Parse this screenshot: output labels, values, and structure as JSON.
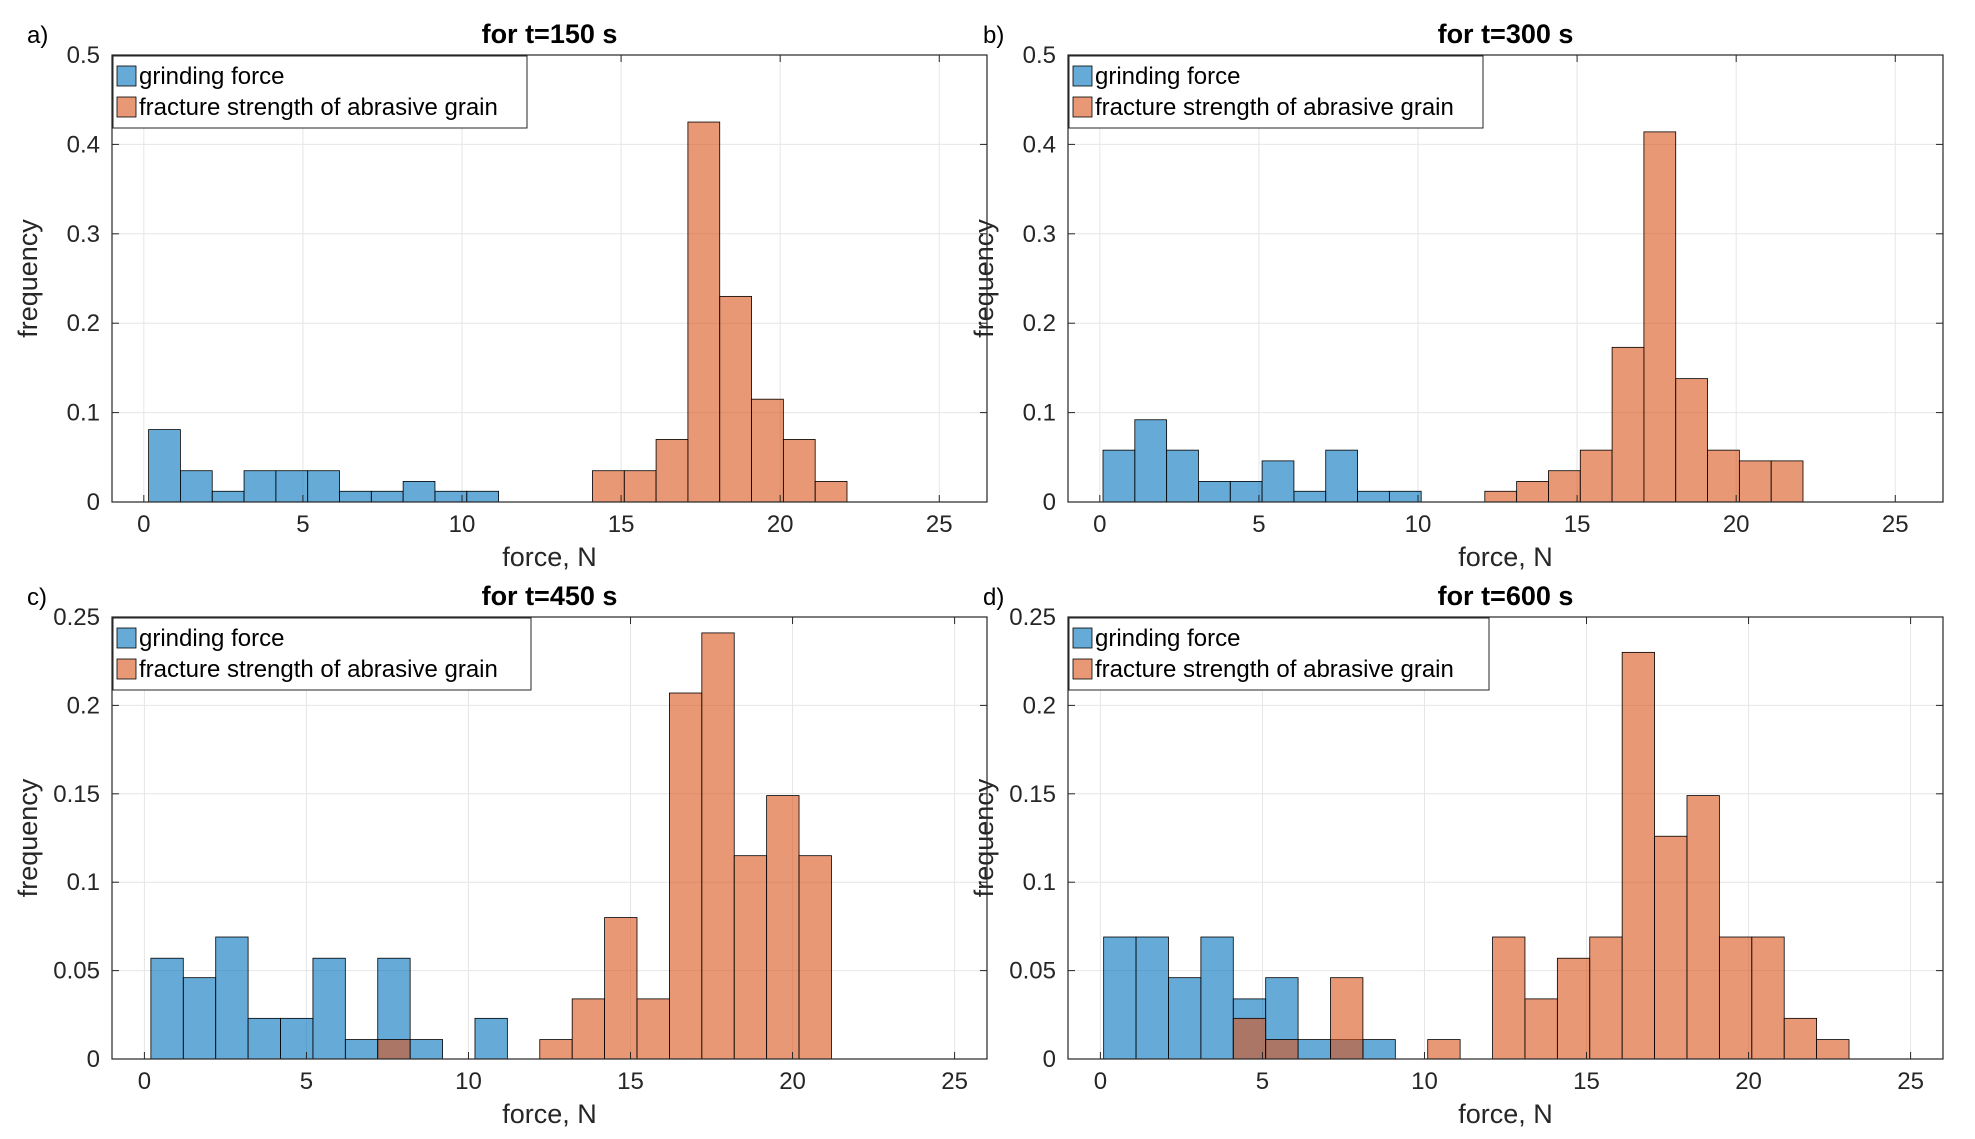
{
  "colors": {
    "grinding": "#0072bd",
    "fracture": "#d95319",
    "axis": "#262626",
    "grid": "#e6e6e6"
  },
  "chart_data": [
    {
      "type": "bar",
      "panel_label": "a)",
      "title": "for t=150 s",
      "xlabel": "force, N",
      "ylabel": "frequency",
      "xlim": [
        -1,
        26.5
      ],
      "ylim": [
        0,
        0.5
      ],
      "xticks": [
        0,
        5,
        10,
        15,
        20,
        25
      ],
      "yticks": [
        0,
        0.1,
        0.2,
        0.3,
        0.4,
        0.5
      ],
      "ytick_labels": [
        "0",
        "0.1",
        "0.2",
        "0.3",
        "0.4",
        "0.5"
      ],
      "grid": true,
      "legend": "top-left",
      "series": [
        {
          "name": "grinding force",
          "bins": [
            {
              "x0": 0.15,
              "x1": 1.15,
              "y": 0.081
            },
            {
              "x0": 1.15,
              "x1": 2.15,
              "y": 0.035
            },
            {
              "x0": 2.15,
              "x1": 3.15,
              "y": 0.012
            },
            {
              "x0": 3.15,
              "x1": 4.15,
              "y": 0.035
            },
            {
              "x0": 4.15,
              "x1": 5.15,
              "y": 0.035
            },
            {
              "x0": 5.15,
              "x1": 6.15,
              "y": 0.035
            },
            {
              "x0": 6.15,
              "x1": 7.15,
              "y": 0.012
            },
            {
              "x0": 7.15,
              "x1": 8.15,
              "y": 0.012
            },
            {
              "x0": 8.15,
              "x1": 9.15,
              "y": 0.023
            },
            {
              "x0": 9.15,
              "x1": 10.15,
              "y": 0.012
            },
            {
              "x0": 10.15,
              "x1": 11.15,
              "y": 0.012
            }
          ]
        },
        {
          "name": "fracture strength of abrasive grain",
          "bins": [
            {
              "x0": 14.1,
              "x1": 15.1,
              "y": 0.035
            },
            {
              "x0": 15.1,
              "x1": 16.1,
              "y": 0.035
            },
            {
              "x0": 16.1,
              "x1": 17.1,
              "y": 0.07
            },
            {
              "x0": 17.1,
              "x1": 18.1,
              "y": 0.425
            },
            {
              "x0": 18.1,
              "x1": 19.1,
              "y": 0.23
            },
            {
              "x0": 19.1,
              "x1": 20.1,
              "y": 0.115
            },
            {
              "x0": 20.1,
              "x1": 21.1,
              "y": 0.07
            },
            {
              "x0": 21.1,
              "x1": 22.1,
              "y": 0.023
            }
          ]
        }
      ]
    },
    {
      "type": "bar",
      "panel_label": "b)",
      "title": "for t=300 s",
      "xlabel": "force, N",
      "ylabel": "frequency",
      "xlim": [
        -1,
        26.5
      ],
      "ylim": [
        0,
        0.5
      ],
      "xticks": [
        0,
        5,
        10,
        15,
        20,
        25
      ],
      "yticks": [
        0,
        0.1,
        0.2,
        0.3,
        0.4,
        0.5
      ],
      "ytick_labels": [
        "0",
        "0.1",
        "0.2",
        "0.3",
        "0.4",
        "0.5"
      ],
      "grid": true,
      "legend": "top-left",
      "series": [
        {
          "name": "grinding force",
          "bins": [
            {
              "x0": 0.1,
              "x1": 1.1,
              "y": 0.058
            },
            {
              "x0": 1.1,
              "x1": 2.1,
              "y": 0.092
            },
            {
              "x0": 2.1,
              "x1": 3.1,
              "y": 0.058
            },
            {
              "x0": 3.1,
              "x1": 4.1,
              "y": 0.023
            },
            {
              "x0": 4.1,
              "x1": 5.1,
              "y": 0.023
            },
            {
              "x0": 5.1,
              "x1": 6.1,
              "y": 0.046
            },
            {
              "x0": 6.1,
              "x1": 7.1,
              "y": 0.012
            },
            {
              "x0": 7.1,
              "x1": 8.1,
              "y": 0.058
            },
            {
              "x0": 8.1,
              "x1": 9.1,
              "y": 0.012
            },
            {
              "x0": 9.1,
              "x1": 10.1,
              "y": 0.012
            }
          ]
        },
        {
          "name": "fracture strength of abrasive grain",
          "bins": [
            {
              "x0": 12.1,
              "x1": 13.1,
              "y": 0.012
            },
            {
              "x0": 13.1,
              "x1": 14.1,
              "y": 0.023
            },
            {
              "x0": 14.1,
              "x1": 15.1,
              "y": 0.035
            },
            {
              "x0": 15.1,
              "x1": 16.1,
              "y": 0.058
            },
            {
              "x0": 16.1,
              "x1": 17.1,
              "y": 0.173
            },
            {
              "x0": 17.1,
              "x1": 18.1,
              "y": 0.414
            },
            {
              "x0": 18.1,
              "x1": 19.1,
              "y": 0.138
            },
            {
              "x0": 19.1,
              "x1": 20.1,
              "y": 0.058
            },
            {
              "x0": 20.1,
              "x1": 21.1,
              "y": 0.046
            },
            {
              "x0": 21.1,
              "x1": 22.1,
              "y": 0.046
            }
          ]
        }
      ]
    },
    {
      "type": "bar",
      "panel_label": "c)",
      "title": "for t=450 s",
      "xlabel": "force, N",
      "ylabel": "frequency",
      "xlim": [
        -1,
        26
      ],
      "ylim": [
        0,
        0.25
      ],
      "xticks": [
        0,
        5,
        10,
        15,
        20,
        25
      ],
      "yticks": [
        0,
        0.05,
        0.1,
        0.15,
        0.2,
        0.25
      ],
      "ytick_labels": [
        "0",
        "0.05",
        "0.1",
        "0.15",
        "0.2",
        "0.25"
      ],
      "grid": true,
      "legend": "top-left",
      "series": [
        {
          "name": "grinding force",
          "bins": [
            {
              "x0": 0.2,
              "x1": 1.2,
              "y": 0.057
            },
            {
              "x0": 1.2,
              "x1": 2.2,
              "y": 0.046
            },
            {
              "x0": 2.2,
              "x1": 3.2,
              "y": 0.069
            },
            {
              "x0": 3.2,
              "x1": 4.2,
              "y": 0.023
            },
            {
              "x0": 4.2,
              "x1": 5.2,
              "y": 0.023
            },
            {
              "x0": 5.2,
              "x1": 6.2,
              "y": 0.057
            },
            {
              "x0": 6.2,
              "x1": 7.2,
              "y": 0.011
            },
            {
              "x0": 7.2,
              "x1": 8.2,
              "y": 0.057
            },
            {
              "x0": 8.2,
              "x1": 9.2,
              "y": 0.011
            },
            {
              "x0": 10.2,
              "x1": 11.2,
              "y": 0.023
            }
          ]
        },
        {
          "name": "fracture strength of abrasive grain",
          "bins": [
            {
              "x0": 7.2,
              "x1": 8.2,
              "y": 0.011
            },
            {
              "x0": 12.2,
              "x1": 13.2,
              "y": 0.011
            },
            {
              "x0": 13.2,
              "x1": 14.2,
              "y": 0.034
            },
            {
              "x0": 14.2,
              "x1": 15.2,
              "y": 0.08
            },
            {
              "x0": 15.2,
              "x1": 16.2,
              "y": 0.034
            },
            {
              "x0": 16.2,
              "x1": 17.2,
              "y": 0.207
            },
            {
              "x0": 17.2,
              "x1": 18.2,
              "y": 0.241
            },
            {
              "x0": 18.2,
              "x1": 19.2,
              "y": 0.115
            },
            {
              "x0": 19.2,
              "x1": 20.2,
              "y": 0.149
            },
            {
              "x0": 20.2,
              "x1": 21.2,
              "y": 0.115
            }
          ]
        }
      ]
    },
    {
      "type": "bar",
      "panel_label": "d)",
      "title": "for t=600 s",
      "xlabel": "force, N",
      "ylabel": "frequency",
      "xlim": [
        -1,
        26
      ],
      "ylim": [
        0,
        0.25
      ],
      "xticks": [
        0,
        5,
        10,
        15,
        20,
        25
      ],
      "yticks": [
        0,
        0.05,
        0.1,
        0.15,
        0.2,
        0.25
      ],
      "ytick_labels": [
        "0",
        "0.05",
        "0.1",
        "0.15",
        "0.2",
        "0.25"
      ],
      "grid": true,
      "legend": "top-left",
      "series": [
        {
          "name": "grinding force",
          "bins": [
            {
              "x0": 0.1,
              "x1": 1.1,
              "y": 0.069
            },
            {
              "x0": 1.1,
              "x1": 2.1,
              "y": 0.069
            },
            {
              "x0": 2.1,
              "x1": 3.1,
              "y": 0.046
            },
            {
              "x0": 3.1,
              "x1": 4.1,
              "y": 0.069
            },
            {
              "x0": 4.1,
              "x1": 5.1,
              "y": 0.034
            },
            {
              "x0": 5.1,
              "x1": 6.1,
              "y": 0.046
            },
            {
              "x0": 6.1,
              "x1": 7.1,
              "y": 0.011
            },
            {
              "x0": 7.1,
              "x1": 8.1,
              "y": 0.011
            },
            {
              "x0": 8.1,
              "x1": 9.1,
              "y": 0.011
            }
          ]
        },
        {
          "name": "fracture strength of abrasive grain",
          "bins": [
            {
              "x0": 4.1,
              "x1": 5.1,
              "y": 0.023
            },
            {
              "x0": 5.1,
              "x1": 6.1,
              "y": 0.011
            },
            {
              "x0": 7.1,
              "x1": 8.1,
              "y": 0.046
            },
            {
              "x0": 10.1,
              "x1": 11.1,
              "y": 0.011
            },
            {
              "x0": 12.1,
              "x1": 13.1,
              "y": 0.069
            },
            {
              "x0": 13.1,
              "x1": 14.1,
              "y": 0.034
            },
            {
              "x0": 14.1,
              "x1": 15.1,
              "y": 0.057
            },
            {
              "x0": 15.1,
              "x1": 16.1,
              "y": 0.069
            },
            {
              "x0": 16.1,
              "x1": 17.1,
              "y": 0.23
            },
            {
              "x0": 17.1,
              "x1": 18.1,
              "y": 0.126
            },
            {
              "x0": 18.1,
              "x1": 19.1,
              "y": 0.149
            },
            {
              "x0": 19.1,
              "x1": 20.1,
              "y": 0.069
            },
            {
              "x0": 20.1,
              "x1": 21.1,
              "y": 0.069
            },
            {
              "x0": 21.1,
              "x1": 22.1,
              "y": 0.023
            },
            {
              "x0": 22.1,
              "x1": 23.1,
              "y": 0.011
            }
          ]
        }
      ]
    }
  ]
}
